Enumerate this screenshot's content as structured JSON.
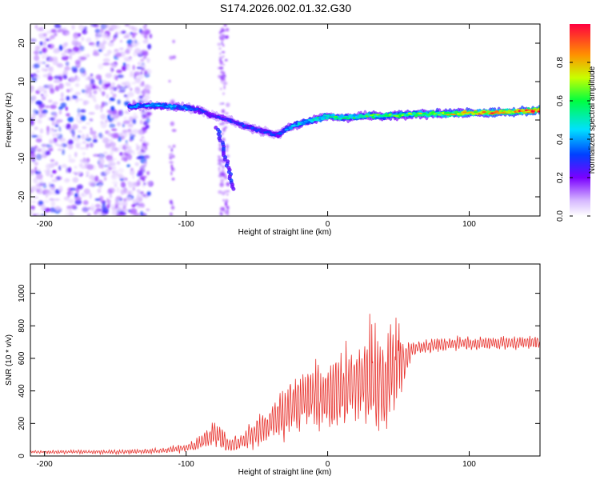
{
  "title": "S174.2026.002.01.32.G30",
  "chart_data": [
    {
      "type": "heatmap",
      "name": "spectrogram",
      "xlabel": "Height of straight line (km)",
      "ylabel": "Frequency (Hz)",
      "xlim": [
        -210,
        150
      ],
      "ylim": [
        -25,
        25
      ],
      "xticks": [
        -200,
        -100,
        0,
        100
      ],
      "yticks": [
        -20,
        -10,
        0,
        10,
        20
      ],
      "colorbar": {
        "label": "Normalized spectral amplitude",
        "range": [
          0.0,
          1.0
        ],
        "ticks": [
          0.0,
          0.2,
          0.4,
          0.6,
          0.8
        ],
        "tick_labels": [
          "0.0",
          "0.2",
          "0.4",
          "0.6",
          "0.8"
        ]
      },
      "ridge": {
        "description": "main spectral line frequency vs height",
        "x": [
          -140,
          -120,
          -100,
          -90,
          -80,
          -70,
          -60,
          -50,
          -40,
          -35,
          -30,
          -20,
          -10,
          0,
          10,
          20,
          30,
          40,
          50,
          60,
          80,
          100,
          120,
          140,
          150
        ],
        "y": [
          3.5,
          3.8,
          3.2,
          2.5,
          1.0,
          0.0,
          -1.5,
          -2.5,
          -3.5,
          -3.8,
          -2.5,
          -1.0,
          0.0,
          1.0,
          0.6,
          0.8,
          1.2,
          1.0,
          1.3,
          1.5,
          1.6,
          1.8,
          2.0,
          2.3,
          2.5
        ],
        "amplitude": [
          0.35,
          0.4,
          0.38,
          0.3,
          0.25,
          0.28,
          0.3,
          0.32,
          0.3,
          0.3,
          0.35,
          0.45,
          0.5,
          0.55,
          0.55,
          0.55,
          0.6,
          0.6,
          0.62,
          0.65,
          0.7,
          0.8,
          0.85,
          0.9,
          1.0
        ]
      },
      "noise_region": {
        "x_range": [
          -210,
          -125
        ],
        "y_range": [
          -25,
          25
        ],
        "amplitude_range": [
          0.05,
          0.25
        ]
      }
    },
    {
      "type": "line",
      "name": "snr",
      "xlabel": "Height of straight line (km)",
      "ylabel": "SNR (10 * v/v)",
      "xlim": [
        -210,
        150
      ],
      "ylim": [
        0,
        1180
      ],
      "xticks": [
        -200,
        -100,
        0,
        100
      ],
      "yticks": [
        0,
        200,
        400,
        600,
        800,
        1000
      ],
      "color": "#e8322d",
      "envelope": {
        "x": [
          -210,
          -150,
          -120,
          -100,
          -90,
          -80,
          -75,
          -70,
          -60,
          -50,
          -40,
          -30,
          -20,
          -10,
          0,
          10,
          20,
          25,
          30,
          40,
          45,
          50,
          55,
          60,
          80,
          100,
          120,
          150
        ],
        "mean": [
          25,
          25,
          30,
          50,
          80,
          140,
          110,
          60,
          90,
          150,
          200,
          280,
          330,
          360,
          380,
          400,
          450,
          470,
          420,
          420,
          500,
          560,
          600,
          660,
          690,
          690,
          695,
          700
        ],
        "spread": [
          10,
          12,
          15,
          25,
          40,
          90,
          80,
          40,
          60,
          90,
          120,
          160,
          180,
          200,
          220,
          220,
          300,
          320,
          260,
          300,
          350,
          200,
          120,
          50,
          40,
          40,
          40,
          40
        ]
      }
    }
  ]
}
